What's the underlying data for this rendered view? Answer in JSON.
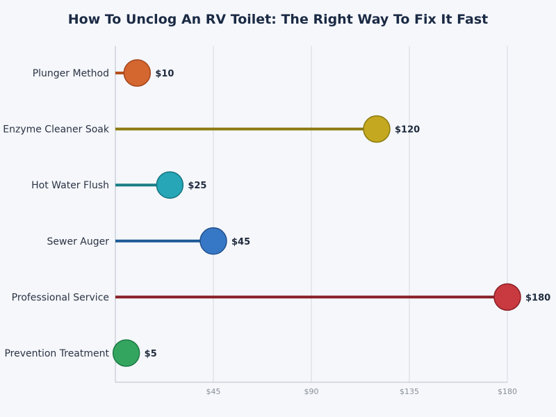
{
  "chart_data": {
    "type": "lollipop",
    "title": "How To Unclog An RV Toilet: The Right Way To Fix It Fast",
    "xlabel": "",
    "ylabel": "",
    "xlim": [
      0,
      180
    ],
    "x_ticks": [
      45,
      90,
      135,
      180
    ],
    "x_tick_labels": [
      "$45",
      "$90",
      "$135",
      "$180"
    ],
    "grid": "vertical",
    "categories": [
      "Plunger Method",
      "Enzyme Cleaner Soak",
      "Hot Water Flush",
      "Sewer Auger",
      "Professional Service",
      "Prevention Treatment"
    ],
    "values": [
      10,
      120,
      25,
      45,
      180,
      5
    ],
    "value_labels": [
      "$10",
      "$120",
      "$25",
      "$45",
      "$180",
      "$5"
    ],
    "colors": [
      {
        "stem": "#b5501a",
        "fill": "#d4662f",
        "stroke": "#a5461a"
      },
      {
        "stem": "#8c7a10",
        "fill": "#c4a81f",
        "stroke": "#8c7a10"
      },
      {
        "stem": "#1a7e86",
        "fill": "#26a6b6",
        "stroke": "#167380"
      },
      {
        "stem": "#1d5a96",
        "fill": "#3778c6",
        "stroke": "#1d4f8a"
      },
      {
        "stem": "#8a1f26",
        "fill": "#c83a3f",
        "stroke": "#8a1f26"
      },
      {
        "stem": "#1d7a45",
        "fill": "#33a55f",
        "stroke": "#1d7a45"
      }
    ]
  }
}
